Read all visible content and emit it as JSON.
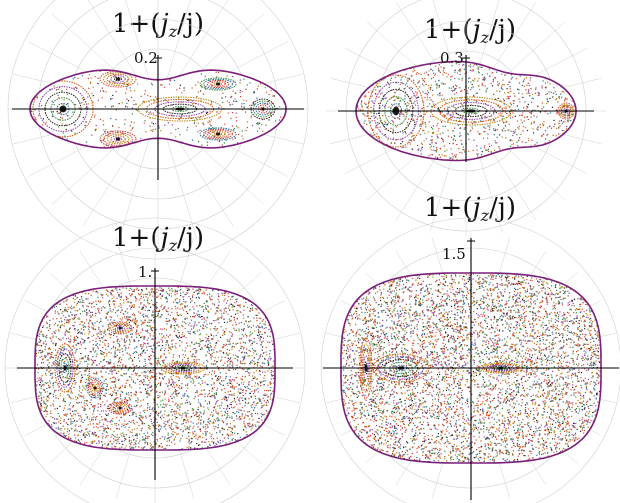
{
  "panels": [
    {
      "title_prefix": "1+(",
      "title_jz": "j",
      "title_sub": "z",
      "title_suffix": "/j)",
      "tick_label": "0.2"
    },
    {
      "title_prefix": "1+(",
      "title_jz": "j",
      "title_sub": "z",
      "title_suffix": "/j)",
      "tick_label": "0.3"
    },
    {
      "title_prefix": "1+(",
      "title_jz": "j",
      "title_sub": "z",
      "title_suffix": "/j)",
      "tick_label": "1."
    },
    {
      "title_prefix": "1+(",
      "title_jz": "j",
      "title_sub": "z",
      "title_suffix": "/j)",
      "tick_label": "1.5"
    }
  ],
  "colors": {
    "boundary": "#7b1f7a",
    "grid": "#cfcfcf",
    "axis": "#000000",
    "orbit_palette": [
      "#c0392b",
      "#2c6e9e",
      "#2e8b3a",
      "#222222",
      "#8e44ad",
      "#d35400",
      "#b8860b",
      "#e74c3c"
    ]
  }
}
